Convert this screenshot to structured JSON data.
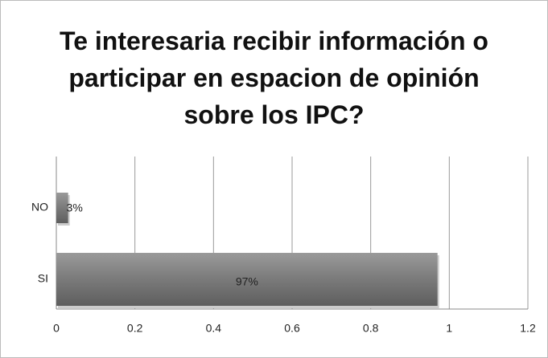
{
  "chart_data": {
    "type": "bar",
    "orientation": "horizontal",
    "title": "Te interesaria recibir información o participar en espacion de opinión sobre los IPC?",
    "categories": [
      "NO",
      "SI"
    ],
    "values": [
      0.03,
      0.97
    ],
    "value_labels": [
      "3%",
      "97%"
    ],
    "color": "#7a7a7a",
    "xlim": [
      0,
      1.2
    ],
    "xticks": [
      0,
      0.2,
      0.4,
      0.6,
      0.8,
      1,
      1.2
    ],
    "grid": true
  }
}
